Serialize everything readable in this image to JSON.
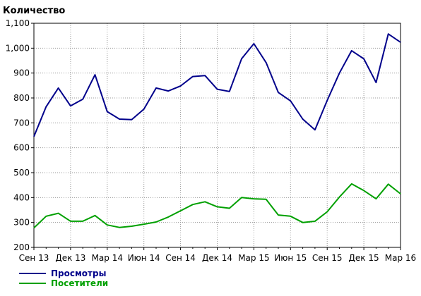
{
  "chart_data": {
    "type": "line",
    "title": "",
    "ylabel": "Количество",
    "xlabel": "",
    "ylim": [
      200,
      1100
    ],
    "grid": true,
    "y_ticks": [
      "200",
      "300",
      "400",
      "500",
      "600",
      "700",
      "800",
      "900",
      "1,000",
      "1,100"
    ],
    "y_tick_values": [
      200,
      300,
      400,
      500,
      600,
      700,
      800,
      900,
      1000,
      1100
    ],
    "x_tick_labels": [
      "Сен 13",
      "Дек 13",
      "Мар 14",
      "Июн 14",
      "Сен 14",
      "Дек 14",
      "Мар 15",
      "Июн 15",
      "Сен 15",
      "Дек 15",
      "Мар 16"
    ],
    "x": [
      "2013-09",
      "2013-10",
      "2013-11",
      "2013-12",
      "2014-01",
      "2014-02",
      "2014-03",
      "2014-04",
      "2014-05",
      "2014-06",
      "2014-07",
      "2014-08",
      "2014-09",
      "2014-10",
      "2014-11",
      "2014-12",
      "2015-01",
      "2015-02",
      "2015-03",
      "2015-04",
      "2015-05",
      "2015-06",
      "2015-07",
      "2015-08",
      "2015-09",
      "2015-10",
      "2015-11",
      "2015-12",
      "2016-01",
      "2016-02",
      "2016-03"
    ],
    "series": [
      {
        "name": "Просмотры",
        "color": "#00008b",
        "values": [
          645,
          765,
          840,
          768,
          795,
          893,
          745,
          715,
          713,
          755,
          840,
          828,
          848,
          886,
          890,
          835,
          826,
          958,
          1018,
          942,
          822,
          788,
          715,
          672,
          790,
          900,
          990,
          957,
          862,
          1057,
          1024
        ]
      },
      {
        "name": "Посетители",
        "color": "#00a000",
        "values": [
          278,
          325,
          337,
          305,
          305,
          328,
          290,
          280,
          285,
          293,
          302,
          322,
          347,
          372,
          383,
          363,
          357,
          400,
          395,
          393,
          330,
          325,
          300,
          305,
          343,
          402,
          455,
          428,
          395,
          454,
          415
        ]
      }
    ]
  }
}
